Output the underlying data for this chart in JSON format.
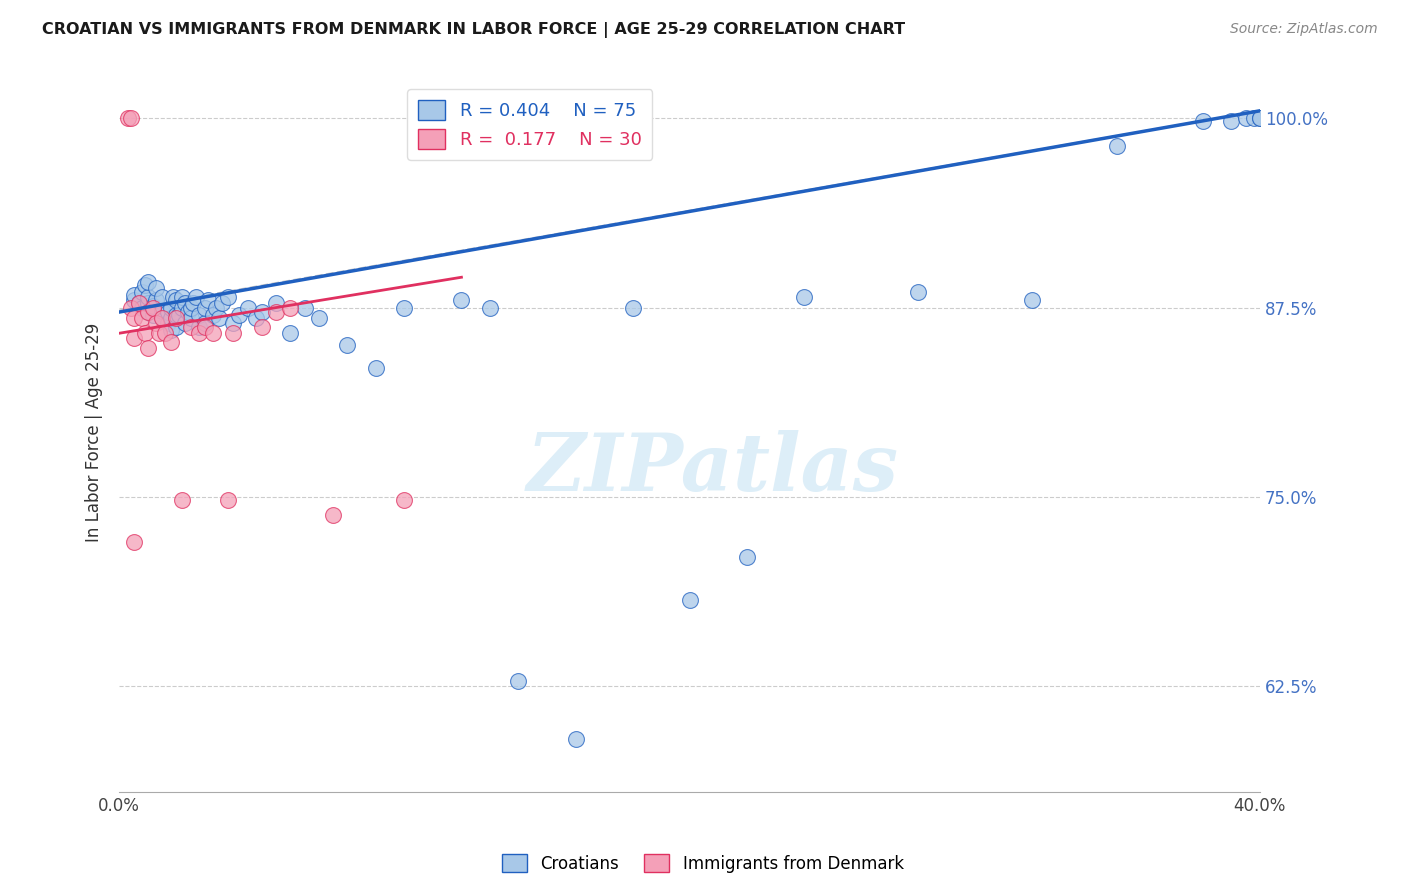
{
  "title": "CROATIAN VS IMMIGRANTS FROM DENMARK IN LABOR FORCE | AGE 25-29 CORRELATION CHART",
  "source": "Source: ZipAtlas.com",
  "ylabel": "In Labor Force | Age 25-29",
  "yticks": [
    0.625,
    0.75,
    0.875,
    1.0
  ],
  "ytick_labels": [
    "62.5%",
    "75.0%",
    "87.5%",
    "100.0%"
  ],
  "xlim": [
    0.0,
    0.4
  ],
  "ylim": [
    0.555,
    1.03
  ],
  "legend_R_blue": "R = 0.404",
  "legend_N_blue": "N = 75",
  "legend_R_pink": "R =  0.177",
  "legend_N_pink": "N = 30",
  "blue_color": "#a8c8e8",
  "pink_color": "#f4a0b8",
  "trendline_blue": "#2060c0",
  "trendline_pink": "#e03060",
  "trendline_gray": "#b8b8b8",
  "watermark": "ZIPatlas",
  "watermark_color": "#ddeef8",
  "blue_trendline_x0": 0.0,
  "blue_trendline_y0": 0.872,
  "blue_trendline_x1": 0.4,
  "blue_trendline_y1": 1.005,
  "pink_trendline_x0": 0.0,
  "pink_trendline_y0": 0.858,
  "pink_trendline_x1": 0.12,
  "pink_trendline_y1": 0.895,
  "gray_trendline_x0": 0.0,
  "gray_trendline_y0": 0.873,
  "gray_trendline_x1": 0.4,
  "gray_trendline_y1": 1.005,
  "blue_scatter_x": [
    0.005,
    0.005,
    0.007,
    0.008,
    0.008,
    0.009,
    0.01,
    0.01,
    0.01,
    0.01,
    0.012,
    0.012,
    0.013,
    0.013,
    0.015,
    0.015,
    0.015,
    0.017,
    0.017,
    0.018,
    0.018,
    0.018,
    0.019,
    0.02,
    0.02,
    0.02,
    0.021,
    0.022,
    0.022,
    0.023,
    0.023,
    0.024,
    0.025,
    0.025,
    0.026,
    0.027,
    0.028,
    0.028,
    0.03,
    0.03,
    0.031,
    0.033,
    0.034,
    0.035,
    0.036,
    0.038,
    0.04,
    0.042,
    0.045,
    0.048,
    0.05,
    0.055,
    0.06,
    0.065,
    0.07,
    0.08,
    0.09,
    0.1,
    0.12,
    0.13,
    0.14,
    0.16,
    0.18,
    0.2,
    0.22,
    0.24,
    0.28,
    0.32,
    0.35,
    0.38,
    0.39,
    0.395,
    0.398,
    0.4,
    0.4
  ],
  "blue_scatter_y": [
    0.88,
    0.883,
    0.878,
    0.875,
    0.885,
    0.89,
    0.872,
    0.878,
    0.882,
    0.892,
    0.87,
    0.876,
    0.88,
    0.888,
    0.868,
    0.873,
    0.882,
    0.865,
    0.872,
    0.86,
    0.868,
    0.875,
    0.882,
    0.862,
    0.87,
    0.88,
    0.87,
    0.875,
    0.882,
    0.865,
    0.878,
    0.872,
    0.868,
    0.875,
    0.878,
    0.882,
    0.862,
    0.87,
    0.865,
    0.875,
    0.88,
    0.87,
    0.875,
    0.868,
    0.878,
    0.882,
    0.865,
    0.87,
    0.875,
    0.868,
    0.872,
    0.878,
    0.858,
    0.875,
    0.868,
    0.85,
    0.835,
    0.875,
    0.88,
    0.875,
    0.628,
    0.59,
    0.875,
    0.682,
    0.71,
    0.882,
    0.885,
    0.88,
    0.982,
    0.998,
    0.998,
    1.0,
    1.0,
    1.0,
    1.0
  ],
  "pink_scatter_x": [
    0.003,
    0.004,
    0.004,
    0.005,
    0.005,
    0.005,
    0.007,
    0.008,
    0.009,
    0.01,
    0.01,
    0.012,
    0.013,
    0.014,
    0.015,
    0.016,
    0.018,
    0.02,
    0.022,
    0.025,
    0.028,
    0.03,
    0.033,
    0.038,
    0.04,
    0.05,
    0.055,
    0.06,
    0.075,
    0.1
  ],
  "pink_scatter_y": [
    1.0,
    1.0,
    0.875,
    0.868,
    0.855,
    0.72,
    0.878,
    0.868,
    0.858,
    0.872,
    0.848,
    0.875,
    0.865,
    0.858,
    0.868,
    0.858,
    0.852,
    0.868,
    0.748,
    0.862,
    0.858,
    0.862,
    0.858,
    0.748,
    0.858,
    0.862,
    0.872,
    0.875,
    0.738,
    0.748
  ]
}
